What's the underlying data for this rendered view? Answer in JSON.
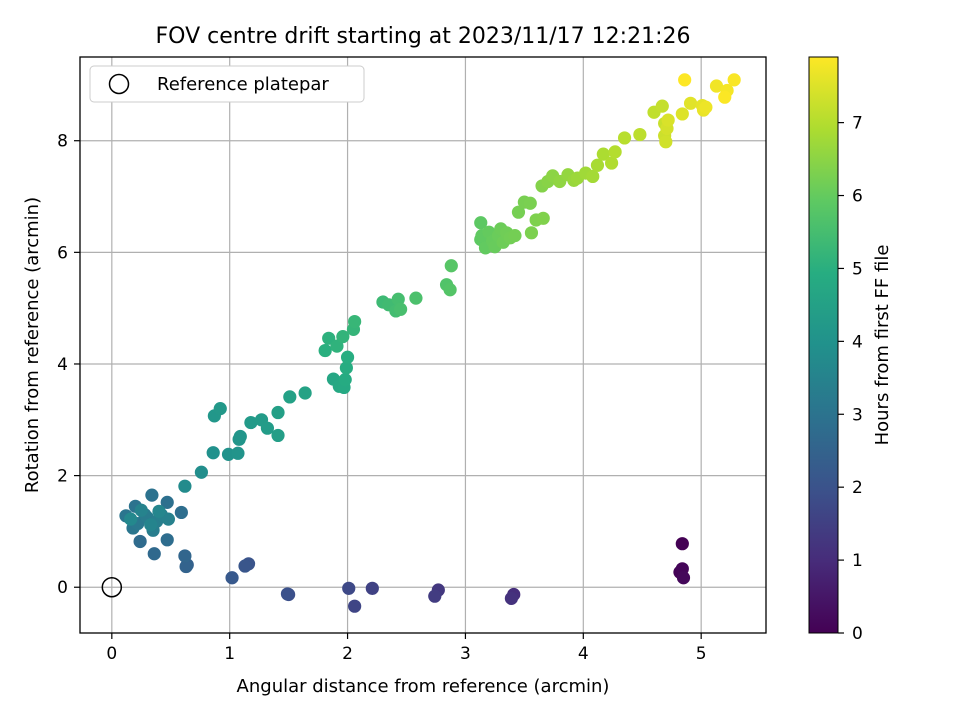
{
  "chart_data": {
    "type": "scatter",
    "title": "FOV centre drift starting at 2023/11/17 12:21:26",
    "xlabel": "Angular distance from reference (arcmin)",
    "ylabel": "Rotation from reference (arcmin)",
    "xlim": [
      -0.27,
      5.55
    ],
    "ylim": [
      -0.82,
      9.5
    ],
    "xticks": [
      0,
      1,
      2,
      3,
      4,
      5
    ],
    "yticks": [
      0,
      2,
      4,
      6,
      8
    ],
    "grid": true,
    "legend": {
      "placement": "top-left",
      "entries": [
        "Reference platepar"
      ]
    },
    "reference_point": {
      "x": 0,
      "y": 0
    },
    "colorbar": {
      "label": "Hours from first FF file",
      "colormap": "viridis",
      "range": [
        0,
        7.9
      ],
      "ticks": [
        0,
        1,
        2,
        3,
        4,
        5,
        6,
        7
      ]
    },
    "points": [
      {
        "x": 4.84,
        "y": 0.78,
        "h": 0.0
      },
      {
        "x": 4.82,
        "y": 0.27,
        "h": 0.05
      },
      {
        "x": 4.84,
        "y": 0.33,
        "h": 0.1
      },
      {
        "x": 4.85,
        "y": 0.17,
        "h": 0.15
      },
      {
        "x": 3.41,
        "y": -0.13,
        "h": 1.05
      },
      {
        "x": 3.39,
        "y": -0.2,
        "h": 1.15
      },
      {
        "x": 2.77,
        "y": -0.05,
        "h": 1.3
      },
      {
        "x": 2.74,
        "y": -0.16,
        "h": 1.4
      },
      {
        "x": 2.21,
        "y": -0.02,
        "h": 1.55
      },
      {
        "x": 2.06,
        "y": -0.34,
        "h": 1.65
      },
      {
        "x": 2.01,
        "y": -0.02,
        "h": 1.75
      },
      {
        "x": 1.5,
        "y": -0.13,
        "h": 1.9
      },
      {
        "x": 1.49,
        "y": -0.12,
        "h": 1.95
      },
      {
        "x": 1.16,
        "y": 0.42,
        "h": 2.05
      },
      {
        "x": 1.13,
        "y": 0.38,
        "h": 2.1
      },
      {
        "x": 1.02,
        "y": 0.17,
        "h": 2.2
      },
      {
        "x": 0.64,
        "y": 0.4,
        "h": 2.45
      },
      {
        "x": 0.63,
        "y": 0.37,
        "h": 2.5
      },
      {
        "x": 0.62,
        "y": 0.56,
        "h": 2.6
      },
      {
        "x": 0.36,
        "y": 0.6,
        "h": 2.7
      },
      {
        "x": 0.24,
        "y": 0.82,
        "h": 2.75
      },
      {
        "x": 0.47,
        "y": 0.85,
        "h": 2.8
      },
      {
        "x": 0.59,
        "y": 1.34,
        "h": 2.85
      },
      {
        "x": 0.47,
        "y": 1.52,
        "h": 2.9
      },
      {
        "x": 0.34,
        "y": 1.65,
        "h": 2.95
      },
      {
        "x": 0.2,
        "y": 1.45,
        "h": 3.0
      },
      {
        "x": 0.12,
        "y": 1.28,
        "h": 3.05
      },
      {
        "x": 0.18,
        "y": 1.06,
        "h": 3.1
      },
      {
        "x": 0.22,
        "y": 1.14,
        "h": 3.15
      },
      {
        "x": 0.28,
        "y": 1.3,
        "h": 3.2
      },
      {
        "x": 0.3,
        "y": 1.25,
        "h": 3.25
      },
      {
        "x": 0.35,
        "y": 1.02,
        "h": 3.3
      },
      {
        "x": 0.38,
        "y": 1.18,
        "h": 3.35
      },
      {
        "x": 0.42,
        "y": 1.3,
        "h": 3.4
      },
      {
        "x": 0.48,
        "y": 1.22,
        "h": 3.45
      },
      {
        "x": 0.25,
        "y": 1.38,
        "h": 3.5
      },
      {
        "x": 0.33,
        "y": 1.12,
        "h": 3.55
      },
      {
        "x": 0.4,
        "y": 1.36,
        "h": 3.6
      },
      {
        "x": 0.16,
        "y": 1.22,
        "h": 3.65
      },
      {
        "x": 0.62,
        "y": 1.81,
        "h": 3.75
      },
      {
        "x": 0.76,
        "y": 2.06,
        "h": 3.85
      },
      {
        "x": 0.86,
        "y": 2.41,
        "h": 3.95
      },
      {
        "x": 0.99,
        "y": 2.38,
        "h": 4.0
      },
      {
        "x": 1.07,
        "y": 2.4,
        "h": 4.05
      },
      {
        "x": 1.08,
        "y": 2.65,
        "h": 4.1
      },
      {
        "x": 1.09,
        "y": 2.7,
        "h": 4.1
      },
      {
        "x": 0.87,
        "y": 3.07,
        "h": 4.15
      },
      {
        "x": 0.92,
        "y": 3.2,
        "h": 4.2
      },
      {
        "x": 1.18,
        "y": 2.95,
        "h": 4.25
      },
      {
        "x": 1.27,
        "y": 3.0,
        "h": 4.3
      },
      {
        "x": 1.32,
        "y": 2.85,
        "h": 4.35
      },
      {
        "x": 1.41,
        "y": 2.72,
        "h": 4.4
      },
      {
        "x": 1.41,
        "y": 3.13,
        "h": 4.45
      },
      {
        "x": 1.51,
        "y": 3.41,
        "h": 4.5
      },
      {
        "x": 1.64,
        "y": 3.48,
        "h": 4.55
      },
      {
        "x": 1.88,
        "y": 3.73,
        "h": 4.7
      },
      {
        "x": 1.93,
        "y": 3.6,
        "h": 4.75
      },
      {
        "x": 1.97,
        "y": 3.58,
        "h": 4.8
      },
      {
        "x": 1.98,
        "y": 3.72,
        "h": 4.85
      },
      {
        "x": 1.99,
        "y": 3.93,
        "h": 4.9
      },
      {
        "x": 2.0,
        "y": 4.12,
        "h": 4.95
      },
      {
        "x": 1.81,
        "y": 4.24,
        "h": 5.0
      },
      {
        "x": 1.84,
        "y": 4.46,
        "h": 5.05
      },
      {
        "x": 1.91,
        "y": 4.32,
        "h": 5.1
      },
      {
        "x": 1.96,
        "y": 4.49,
        "h": 5.15
      },
      {
        "x": 2.05,
        "y": 4.62,
        "h": 5.2
      },
      {
        "x": 2.06,
        "y": 4.76,
        "h": 5.25
      },
      {
        "x": 2.3,
        "y": 5.11,
        "h": 5.35
      },
      {
        "x": 2.35,
        "y": 5.06,
        "h": 5.4
      },
      {
        "x": 2.41,
        "y": 4.95,
        "h": 5.45
      },
      {
        "x": 2.43,
        "y": 5.16,
        "h": 5.5
      },
      {
        "x": 2.45,
        "y": 4.98,
        "h": 5.55
      },
      {
        "x": 2.58,
        "y": 5.18,
        "h": 5.6
      },
      {
        "x": 2.84,
        "y": 5.42,
        "h": 5.7
      },
      {
        "x": 2.87,
        "y": 5.33,
        "h": 5.75
      },
      {
        "x": 2.88,
        "y": 5.76,
        "h": 5.8
      },
      {
        "x": 3.13,
        "y": 6.53,
        "h": 5.9
      },
      {
        "x": 3.13,
        "y": 6.23,
        "h": 5.92
      },
      {
        "x": 3.14,
        "y": 6.3,
        "h": 5.95
      },
      {
        "x": 3.17,
        "y": 6.08,
        "h": 5.97
      },
      {
        "x": 3.2,
        "y": 6.36,
        "h": 6.0
      },
      {
        "x": 3.23,
        "y": 6.2,
        "h": 6.02
      },
      {
        "x": 3.25,
        "y": 6.1,
        "h": 6.05
      },
      {
        "x": 3.28,
        "y": 6.3,
        "h": 6.07
      },
      {
        "x": 3.3,
        "y": 6.42,
        "h": 6.1
      },
      {
        "x": 3.32,
        "y": 6.18,
        "h": 6.12
      },
      {
        "x": 3.35,
        "y": 6.35,
        "h": 6.15
      },
      {
        "x": 3.38,
        "y": 6.26,
        "h": 6.17
      },
      {
        "x": 3.42,
        "y": 6.3,
        "h": 6.2
      },
      {
        "x": 3.45,
        "y": 6.72,
        "h": 6.22
      },
      {
        "x": 3.5,
        "y": 6.9,
        "h": 6.25
      },
      {
        "x": 3.55,
        "y": 6.88,
        "h": 6.27
      },
      {
        "x": 3.56,
        "y": 6.35,
        "h": 6.3
      },
      {
        "x": 3.6,
        "y": 6.58,
        "h": 6.32
      },
      {
        "x": 3.66,
        "y": 6.61,
        "h": 6.35
      },
      {
        "x": 3.65,
        "y": 7.19,
        "h": 6.4
      },
      {
        "x": 3.7,
        "y": 7.27,
        "h": 6.45
      },
      {
        "x": 3.74,
        "y": 7.37,
        "h": 6.5
      },
      {
        "x": 3.8,
        "y": 7.27,
        "h": 6.55
      },
      {
        "x": 3.87,
        "y": 7.39,
        "h": 6.6
      },
      {
        "x": 3.92,
        "y": 7.29,
        "h": 6.65
      },
      {
        "x": 3.95,
        "y": 7.33,
        "h": 6.7
      },
      {
        "x": 4.02,
        "y": 7.42,
        "h": 6.75
      },
      {
        "x": 4.08,
        "y": 7.36,
        "h": 6.8
      },
      {
        "x": 4.12,
        "y": 7.56,
        "h": 6.85
      },
      {
        "x": 4.17,
        "y": 7.76,
        "h": 6.9
      },
      {
        "x": 4.24,
        "y": 7.6,
        "h": 6.95
      },
      {
        "x": 4.27,
        "y": 7.8,
        "h": 7.0
      },
      {
        "x": 4.35,
        "y": 8.05,
        "h": 7.05
      },
      {
        "x": 4.48,
        "y": 8.11,
        "h": 7.1
      },
      {
        "x": 4.6,
        "y": 8.51,
        "h": 7.15
      },
      {
        "x": 4.67,
        "y": 8.62,
        "h": 7.2
      },
      {
        "x": 4.69,
        "y": 8.31,
        "h": 7.25
      },
      {
        "x": 4.69,
        "y": 8.09,
        "h": 7.3
      },
      {
        "x": 4.7,
        "y": 7.98,
        "h": 7.35
      },
      {
        "x": 4.71,
        "y": 8.22,
        "h": 7.4
      },
      {
        "x": 4.72,
        "y": 8.37,
        "h": 7.45
      },
      {
        "x": 4.84,
        "y": 8.48,
        "h": 7.5
      },
      {
        "x": 4.91,
        "y": 8.67,
        "h": 7.55
      },
      {
        "x": 5.01,
        "y": 8.63,
        "h": 7.6
      },
      {
        "x": 5.02,
        "y": 8.55,
        "h": 7.65
      },
      {
        "x": 5.04,
        "y": 8.6,
        "h": 7.7
      },
      {
        "x": 5.13,
        "y": 8.98,
        "h": 7.75
      },
      {
        "x": 5.22,
        "y": 8.9,
        "h": 7.8
      },
      {
        "x": 5.28,
        "y": 9.09,
        "h": 7.85
      },
      {
        "x": 5.2,
        "y": 8.78,
        "h": 7.88
      },
      {
        "x": 4.86,
        "y": 9.09,
        "h": 7.9
      }
    ]
  }
}
